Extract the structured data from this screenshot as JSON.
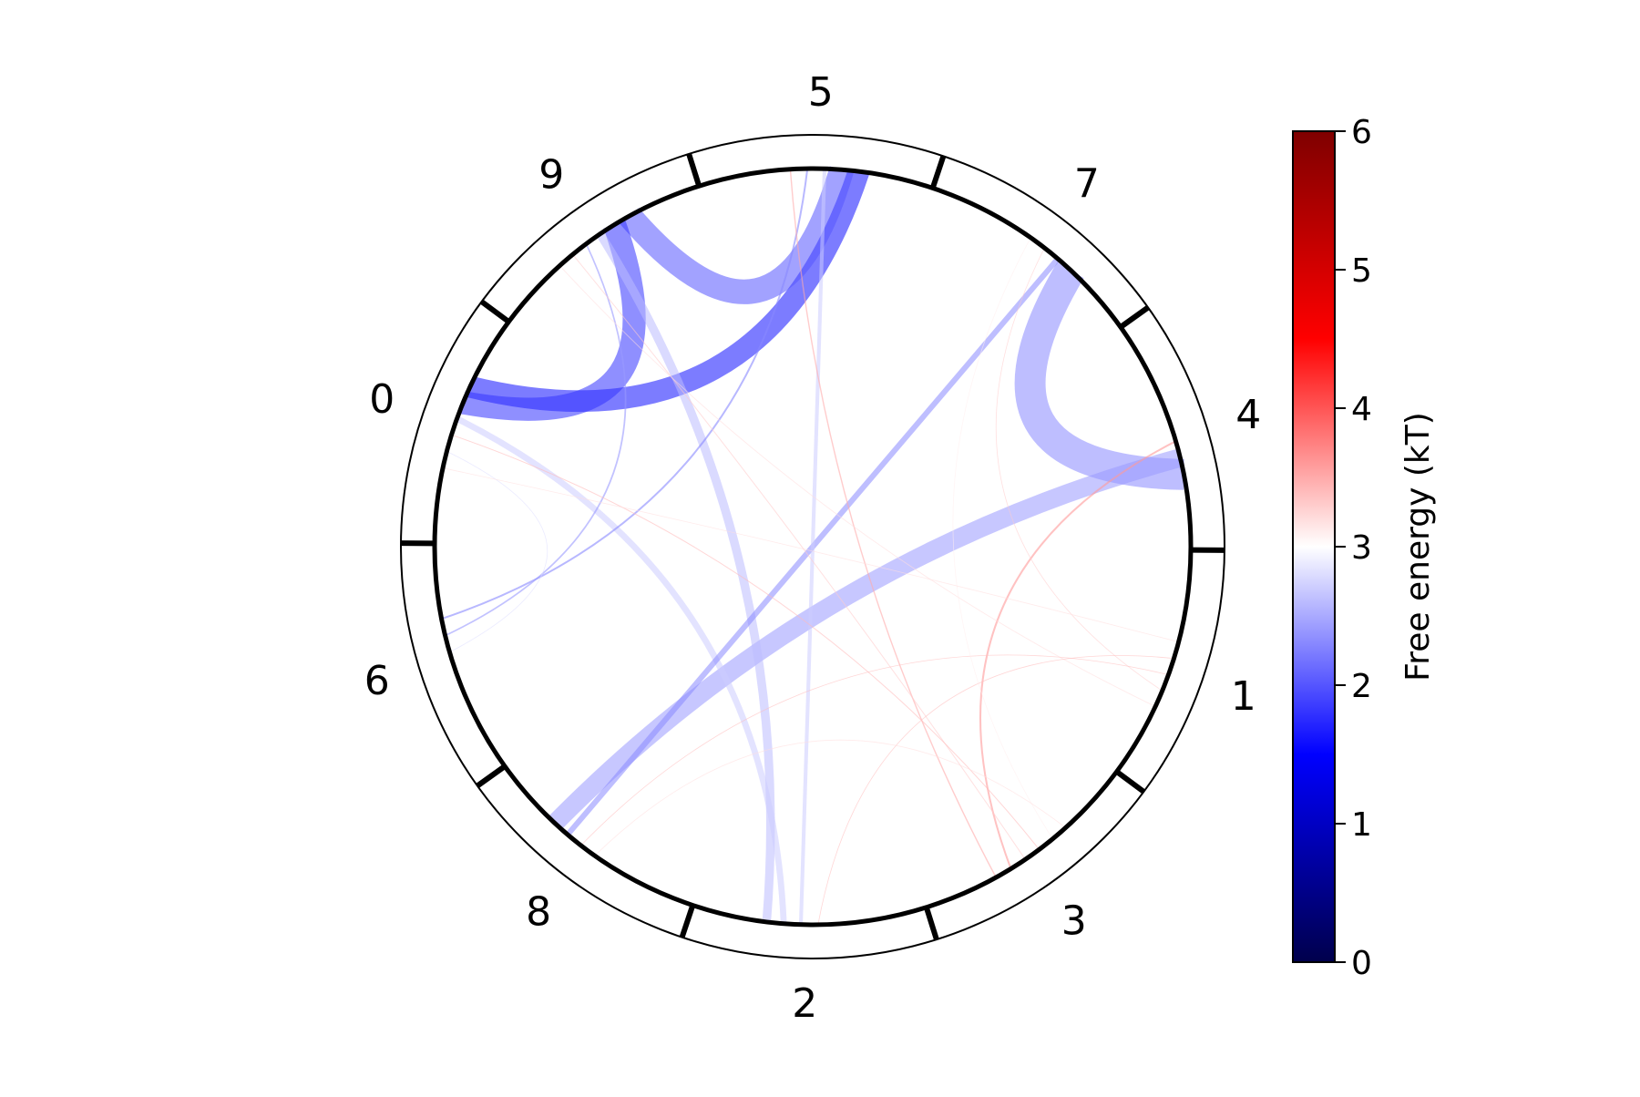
{
  "chart_data": {
    "type": "chord",
    "nodes": [
      "0",
      "1",
      "2",
      "3",
      "4",
      "5",
      "6",
      "7",
      "8",
      "9"
    ],
    "links": [
      {
        "source": "7",
        "target": "4",
        "value": 2.3,
        "weight": 1.0
      },
      {
        "source": "5",
        "target": "0",
        "value": 1.6,
        "weight": 0.7
      },
      {
        "source": "9",
        "target": "5",
        "value": 2.0,
        "weight": 0.8
      },
      {
        "source": "9",
        "target": "0",
        "value": 1.8,
        "weight": 0.75
      },
      {
        "source": "4",
        "target": "8",
        "value": 2.4,
        "weight": 0.6
      },
      {
        "source": "9",
        "target": "2",
        "value": 2.6,
        "weight": 0.28
      },
      {
        "source": "0",
        "target": "2",
        "value": 2.7,
        "weight": 0.2
      },
      {
        "source": "7",
        "target": "8",
        "value": 2.3,
        "weight": 0.18
      },
      {
        "source": "5",
        "target": "2",
        "value": 2.7,
        "weight": 0.12
      },
      {
        "source": "5",
        "target": "6",
        "value": 2.3,
        "weight": 0.06
      },
      {
        "source": "9",
        "target": "6",
        "value": 2.4,
        "weight": 0.05
      },
      {
        "source": "5",
        "target": "3",
        "value": 3.5,
        "weight": 0.04
      },
      {
        "source": "4",
        "target": "3",
        "value": 3.6,
        "weight": 0.06
      },
      {
        "source": "9",
        "target": "3",
        "value": 3.3,
        "weight": 0.03
      },
      {
        "source": "0",
        "target": "3",
        "value": 3.4,
        "weight": 0.03
      },
      {
        "source": "9",
        "target": "1",
        "value": 3.2,
        "weight": 0.025
      },
      {
        "source": "7",
        "target": "1",
        "value": 3.3,
        "weight": 0.02
      },
      {
        "source": "8",
        "target": "1",
        "value": 3.4,
        "weight": 0.02
      },
      {
        "source": "2",
        "target": "1",
        "value": 3.4,
        "weight": 0.02
      },
      {
        "source": "0",
        "target": "6",
        "value": 2.8,
        "weight": 0.02
      },
      {
        "source": "7",
        "target": "3",
        "value": 3.1,
        "weight": 0.02
      },
      {
        "source": "8",
        "target": "3",
        "value": 3.2,
        "weight": 0.015
      },
      {
        "source": "0",
        "target": "1",
        "value": 3.2,
        "weight": 0.015
      }
    ],
    "colorbar": {
      "label": "Free energy (kT)",
      "min": 0,
      "max": 6,
      "ticks": [
        "0",
        "1",
        "2",
        "3",
        "4",
        "5",
        "6"
      ],
      "colormap": "seismic",
      "colors": [
        "#00004c",
        "#0000ff",
        "#ffffff",
        "#ff0000",
        "#7f0000"
      ]
    }
  }
}
